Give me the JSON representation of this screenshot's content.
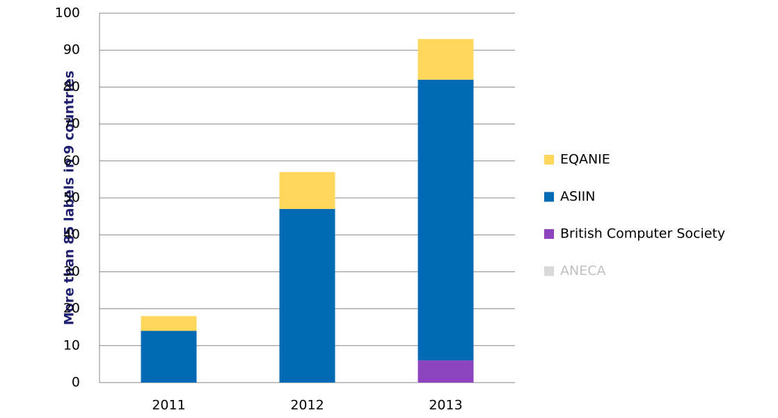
{
  "chart_data": {
    "type": "stacked_bar",
    "y_label": "More than 85 labels in 9 countries",
    "categories": [
      "2011",
      "2012",
      "2013"
    ],
    "series": [
      {
        "name": "ANECA",
        "color": "#d9d9d9",
        "text_color": "#bfbfbf",
        "values": [
          0,
          0,
          0
        ]
      },
      {
        "name": "British Computer Society",
        "color": "#8e44bf",
        "text_color": "#000000",
        "values": [
          0,
          0,
          6
        ]
      },
      {
        "name": "ASIIN",
        "color": "#0069b4",
        "text_color": "#000000",
        "values": [
          14,
          47,
          76
        ]
      },
      {
        "name": "EQANIE",
        "color": "#ffd75a",
        "text_color": "#000000",
        "values": [
          4,
          10,
          11
        ]
      }
    ],
    "ylim": [
      0,
      100
    ],
    "yticks": [
      0,
      10,
      20,
      30,
      40,
      50,
      60,
      70,
      80,
      90,
      100
    ],
    "grid": true,
    "legend": "right"
  }
}
